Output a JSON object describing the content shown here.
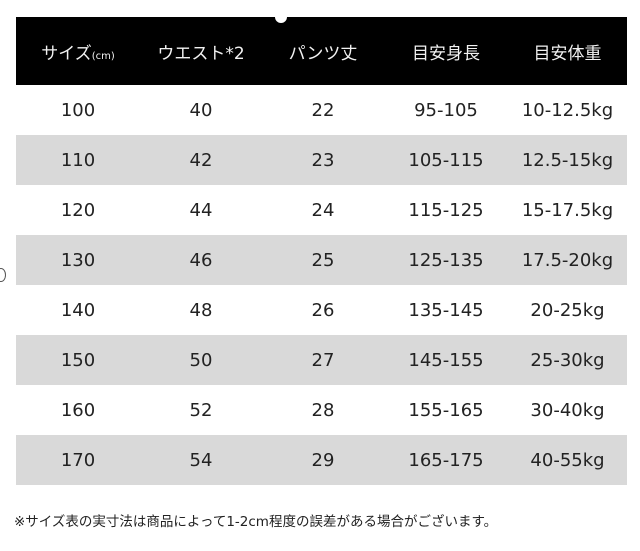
{
  "table": {
    "headers": [
      "サイズ",
      "ウエスト*2",
      "パンツ丈",
      "目安身長",
      "目安体重"
    ],
    "size_unit": "(cm)",
    "rows": [
      [
        "100",
        "40",
        "22",
        "95-105",
        "10-12.5kg"
      ],
      [
        "110",
        "42",
        "23",
        "105-115",
        "12.5-15kg"
      ],
      [
        "120",
        "44",
        "24",
        "115-125",
        "15-17.5kg"
      ],
      [
        "130",
        "46",
        "25",
        "125-135",
        "17.5-20kg"
      ],
      [
        "140",
        "48",
        "26",
        "135-145",
        "20-25kg"
      ],
      [
        "150",
        "50",
        "27",
        "145-155",
        "25-30kg"
      ],
      [
        "160",
        "52",
        "28",
        "155-165",
        "30-40kg"
      ],
      [
        "170",
        "54",
        "29",
        "165-175",
        "40-55kg"
      ]
    ]
  },
  "note": "※サイズ表の実寸法は商品によって1-2cm程度の誤差がある場合がございます。",
  "colors": {
    "header_bg": "#000000",
    "stripe": "#d9d9d9"
  }
}
